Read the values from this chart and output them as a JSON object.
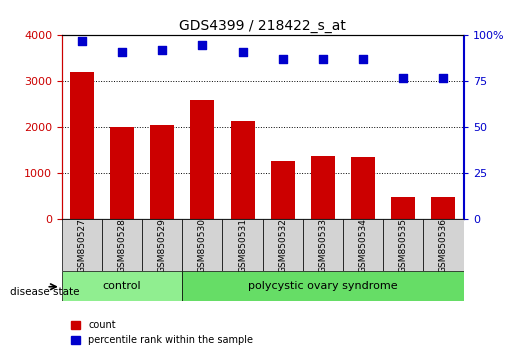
{
  "title": "GDS4399 / 218422_s_at",
  "samples": [
    "GSM850527",
    "GSM850528",
    "GSM850529",
    "GSM850530",
    "GSM850531",
    "GSM850532",
    "GSM850533",
    "GSM850534",
    "GSM850535",
    "GSM850536"
  ],
  "counts": [
    3200,
    2000,
    2050,
    2600,
    2150,
    1280,
    1370,
    1350,
    480,
    490
  ],
  "percentiles": [
    97,
    91,
    92,
    95,
    91,
    87,
    87,
    87,
    77,
    77
  ],
  "control_count": 3,
  "disease_count": 7,
  "bar_color": "#cc0000",
  "dot_color": "#0000cc",
  "ylim_left": [
    0,
    4000
  ],
  "ylim_right": [
    0,
    100
  ],
  "yticks_left": [
    0,
    1000,
    2000,
    3000,
    4000
  ],
  "yticks_right": [
    0,
    25,
    50,
    75,
    100
  ],
  "control_label": "control",
  "disease_label": "polycystic ovary syndrome",
  "disease_state_label": "disease state",
  "legend_count": "count",
  "legend_percentile": "percentile rank within the sample",
  "control_color": "#90ee90",
  "disease_color": "#66dd66",
  "xlabel_bg_color": "#d3d3d3",
  "grid_color": "#000000",
  "axis_left_color": "#cc0000",
  "axis_right_color": "#0000cc"
}
